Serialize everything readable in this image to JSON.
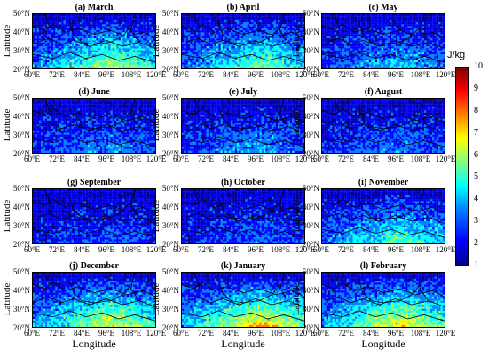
{
  "figure": {
    "colorbar": {
      "unit": "J/kg",
      "ticks": [
        "10",
        "9",
        "8",
        "7",
        "6",
        "5",
        "4",
        "3",
        "2",
        "1"
      ],
      "range": [
        1,
        10
      ],
      "colormap": [
        "#00008f",
        "#0000ff",
        "#0080ff",
        "#00ffff",
        "#80ff80",
        "#ffff00",
        "#ff8000",
        "#ff0000",
        "#800000"
      ]
    },
    "ylabel": "Latitude",
    "xlabel": "Longitude",
    "yticks": [
      "50°N",
      "40°N",
      "30°N",
      "20°N"
    ],
    "xticks": [
      "60°E",
      "72°E",
      "84°E",
      "96°E",
      "108°E",
      "120°E"
    ]
  },
  "chart_data": {
    "type": "heatmap",
    "x_range": [
      60,
      120
    ],
    "y_range": [
      20,
      50
    ],
    "panels": [
      {
        "title": "(a) March",
        "intensity": 0.62
      },
      {
        "title": "(b) April",
        "intensity": 0.55
      },
      {
        "title": "(c) May",
        "intensity": 0.35
      },
      {
        "title": "(d) June",
        "intensity": 0.28
      },
      {
        "title": "(e) July",
        "intensity": 0.3
      },
      {
        "title": "(f) August",
        "intensity": 0.25
      },
      {
        "title": "(g) September",
        "intensity": 0.18
      },
      {
        "title": "(h) October",
        "intensity": 0.2
      },
      {
        "title": "(i) November",
        "intensity": 0.5
      },
      {
        "title": "(j) December",
        "intensity": 0.7
      },
      {
        "title": "(k) January",
        "intensity": 0.8
      },
      {
        "title": "(l) February",
        "intensity": 0.75
      }
    ]
  }
}
